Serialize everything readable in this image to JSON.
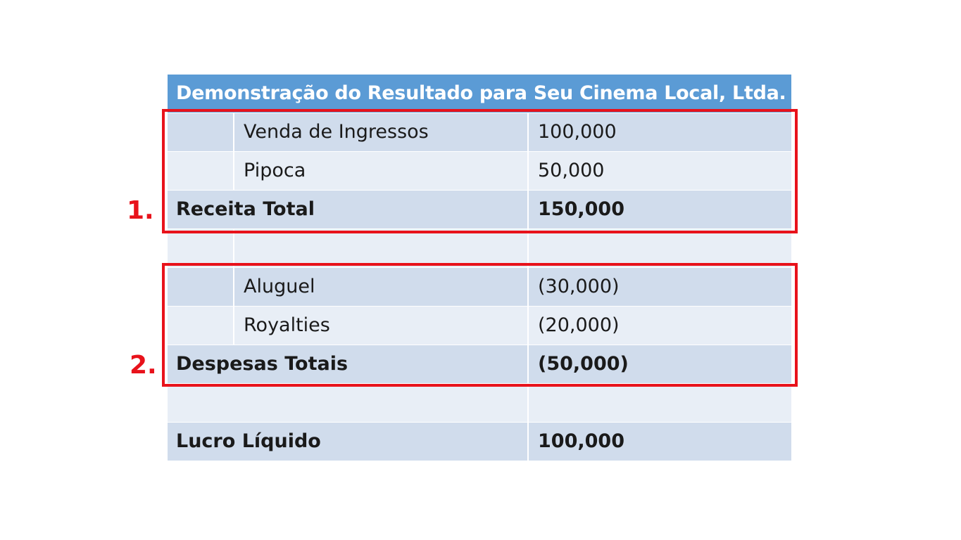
{
  "title": "Demonstração do Resultado para Seu Cinema Local, Ltda.",
  "revenue": {
    "items": [
      {
        "label": "Venda de Ingressos",
        "value": "100,000"
      },
      {
        "label": "Pipoca",
        "value": "50,000"
      }
    ],
    "total_label": "Receita Total",
    "total_value": "150,000"
  },
  "expenses": {
    "items": [
      {
        "label": "Aluguel",
        "value": "(30,000)"
      },
      {
        "label": "Royalties",
        "value": "(20,000)"
      }
    ],
    "total_label": "Despesas Totais",
    "total_value": "(50,000)"
  },
  "net": {
    "label": "Lucro Líquido",
    "value": "100,000"
  },
  "annotations": {
    "marker_1": "1.",
    "marker_2": "2."
  },
  "colors": {
    "header": "#5b9bd5",
    "row_dark": "#d0dcec",
    "row_light": "#e8eef6",
    "highlight": "#e8121b"
  }
}
